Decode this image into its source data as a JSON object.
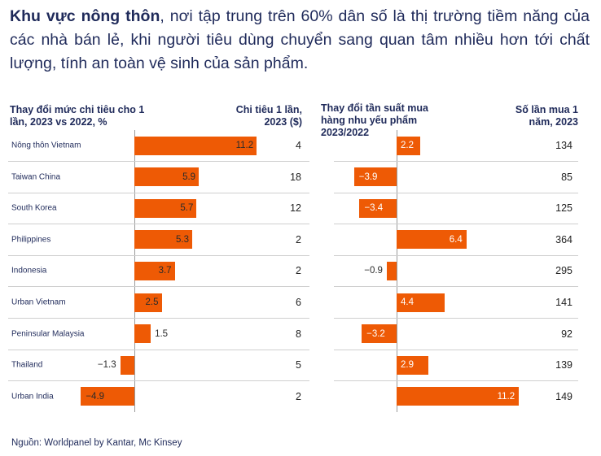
{
  "intro": {
    "bold": "Khu vực nông thôn",
    "rest": ", nơi tập trung trên 60% dân số là thị trường tiềm năng của các nhà bán lẻ, khi người tiêu dùng chuyển sang quan tâm nhiều hơn tới chất lượng, tính an toàn vệ sinh của sản phẩm."
  },
  "source": "Nguồn: Worldpanel by Kantar, Mc Kinsey",
  "colors": {
    "bar": "#ee5a05",
    "text": "#1f2a5a"
  },
  "chart_data": [
    {
      "type": "bar",
      "orientation": "horizontal",
      "title": "Thay đổi mức chi tiêu cho 1 lần, 2023 vs 2022, %",
      "column_title": "Chi tiêu 1 lần, 2023 ($)",
      "categories": [
        "Nông thôn Vietnam",
        "Taiwan China",
        "South Korea",
        "Philippines",
        "Indonesia",
        "Urban Vietnam",
        "Peninsular Malaysia",
        "Thailand",
        "Urban India"
      ],
      "values": [
        11.2,
        5.9,
        5.7,
        5.3,
        3.7,
        2.5,
        1.5,
        -1.3,
        -4.9
      ],
      "value_labels": [
        "11.2",
        "5.9",
        "5.7",
        "5.3",
        "3.7",
        "2.5",
        "1.5",
        "−1.3",
        "−4.9"
      ],
      "column_values": [
        "4",
        "18",
        "12",
        "2",
        "2",
        "6",
        "8",
        "5",
        "2"
      ]
    },
    {
      "type": "bar",
      "orientation": "horizontal",
      "title": "Thay đổi tần suất mua hàng nhu yếu phẩm 2023/2022",
      "column_title": "Số lần mua 1 năm, 2023",
      "values": [
        2.2,
        -3.9,
        -3.4,
        6.4,
        -0.9,
        4.4,
        -3.2,
        2.9,
        11.2
      ],
      "value_labels": [
        "2.2",
        "−3.9",
        "−3.4",
        "6.4",
        "−0.9",
        "4.4",
        "−3.2",
        "2.9",
        "11.2"
      ],
      "column_values": [
        "134",
        "85",
        "125",
        "364",
        "295",
        "141",
        "92",
        "139",
        "149"
      ]
    }
  ]
}
